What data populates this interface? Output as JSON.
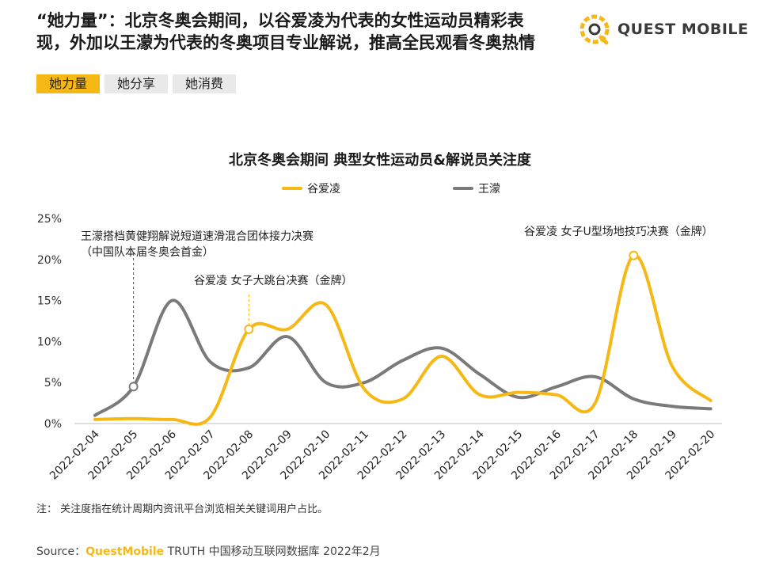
{
  "header": {
    "headline": "“她力量”：北京冬奥会期间，以谷爱凌为代表的女性运动员精彩表现，外加以王濛为代表的冬奥项目专业解说，推高全民观看冬奥热情",
    "tabs": [
      {
        "label": "她力量",
        "active": true
      },
      {
        "label": "她分享",
        "active": false
      },
      {
        "label": "她消费",
        "active": false
      }
    ]
  },
  "logo": {
    "text": "QUEST MOBILE",
    "icon": "quest-mobile-logo-icon",
    "accent": "#f5b814"
  },
  "chart_data": {
    "type": "line",
    "title": "北京冬奥会期间 典型女性运动员&解说员关注度",
    "categories": [
      "2022-02-04",
      "2022-02-05",
      "2022-02-06",
      "2022-02-07",
      "2022-02-08",
      "2022-02-09",
      "2022-02-10",
      "2022-02-11",
      "2022-02-12",
      "2022-02-13",
      "2022-02-14",
      "2022-02-15",
      "2022-02-16",
      "2022-02-17",
      "2022-02-18",
      "2022-02-19",
      "2022-02-20"
    ],
    "ylim": [
      0,
      25
    ],
    "yticks": [
      0,
      5,
      10,
      15,
      20,
      25
    ],
    "ytick_labels": [
      "0%",
      "5%",
      "10%",
      "15%",
      "20%",
      "25%"
    ],
    "legend_position": "top-center",
    "grid": false,
    "series": [
      {
        "name": "谷爱凌",
        "color": "#f5b814",
        "values": [
          0.5,
          0.6,
          0.5,
          0.8,
          11.5,
          11.5,
          14.5,
          4.2,
          3.0,
          8.2,
          3.5,
          3.8,
          3.5,
          2.5,
          20.5,
          7.0,
          2.8
        ]
      },
      {
        "name": "王濛",
        "color": "#7a7a7a",
        "values": [
          1.0,
          4.5,
          15.0,
          7.5,
          6.8,
          10.6,
          5.0,
          5.0,
          7.7,
          9.2,
          6.0,
          3.2,
          4.5,
          5.7,
          3.0,
          2.1,
          1.8
        ]
      }
    ],
    "annotations": [
      {
        "series": 1,
        "index": 1,
        "lines": [
          "王濛搭档黄健翔解说短道速滑混合团体接力决赛",
          "（中国队本届冬奥会首金）"
        ]
      },
      {
        "series": 0,
        "index": 4,
        "lines": [
          "谷爱凌 女子大跳台决赛（金牌）"
        ]
      },
      {
        "series": 0,
        "index": 14,
        "lines": [
          "谷爱凌 女子U型场地技巧决赛（金牌）"
        ]
      }
    ]
  },
  "footer": {
    "note": "注：  关注度指在统计周期内资讯平台浏览相关关键词用户占比。",
    "source_prefix": "Source：",
    "source_brand": "QuestMobile",
    "source_rest": " TRUTH 中国移动互联网数据库 2022年2月"
  }
}
